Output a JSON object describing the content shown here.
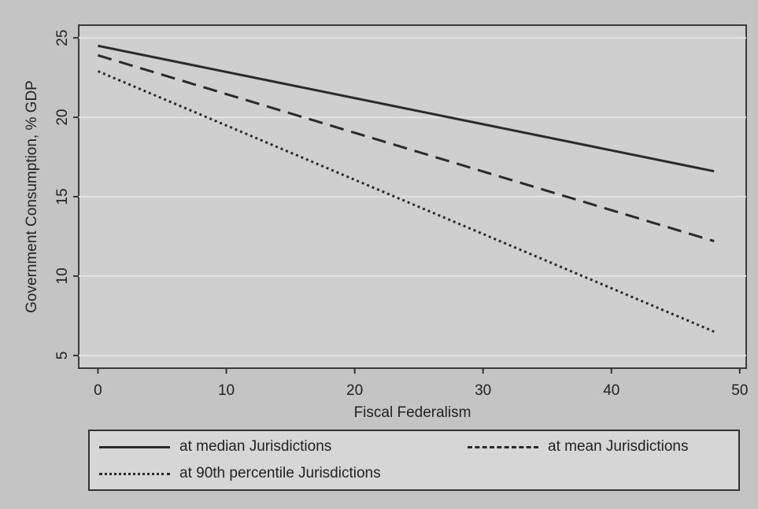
{
  "chart_data": {
    "type": "line",
    "xlabel": "Fiscal Federalism",
    "ylabel": "Government Consumption, % GDP",
    "xlim": [
      -1.5,
      50.5
    ],
    "ylim": [
      4.2,
      25.8
    ],
    "xticks": [
      0,
      10,
      20,
      30,
      40,
      50
    ],
    "yticks": [
      5,
      10,
      15,
      20,
      25
    ],
    "grid": "horizontal",
    "legend_position": "bottom",
    "series": [
      {
        "name": "at median Jurisdictions",
        "style": "solid",
        "x": [
          0,
          48
        ],
        "values": [
          24.5,
          16.6
        ]
      },
      {
        "name": "at mean Jurisdictions",
        "style": "dashed",
        "x": [
          0,
          48
        ],
        "values": [
          23.9,
          12.2
        ]
      },
      {
        "name": "at 90th percentile Jurisdictions",
        "style": "dotted",
        "x": [
          0,
          48
        ],
        "values": [
          22.9,
          6.5
        ]
      }
    ]
  },
  "colors": {
    "line": "#2a2a2a",
    "grid": "#e2e2e2",
    "plot_bg": "#cfcfcf"
  }
}
